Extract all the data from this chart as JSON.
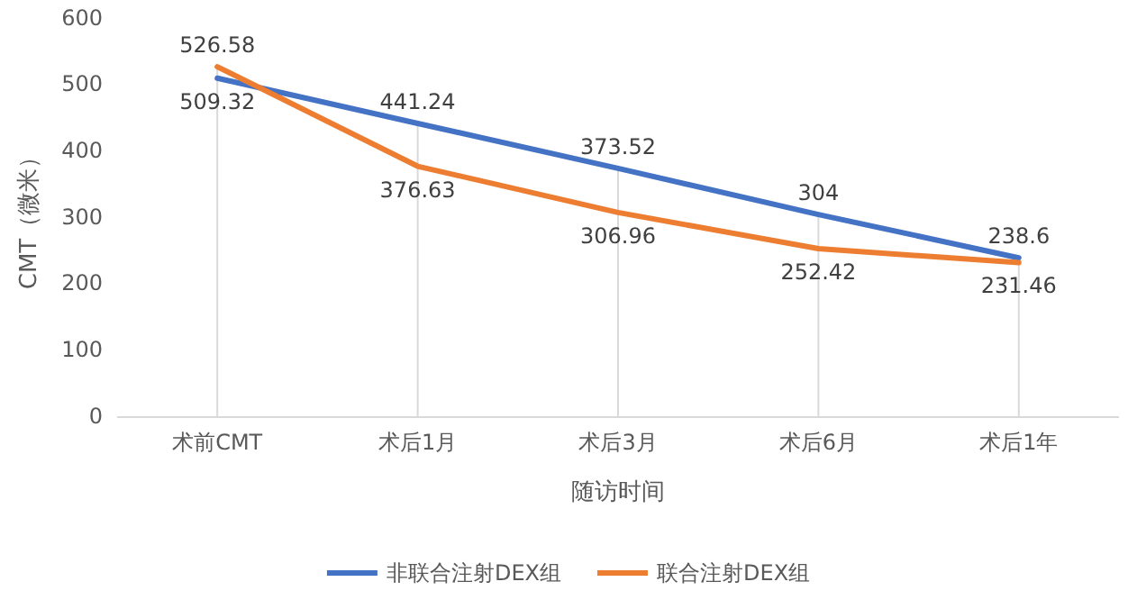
{
  "chart_data": {
    "type": "line",
    "xlabel": "随访时间",
    "ylabel": "CMT（微米）",
    "categories": [
      "术前CMT",
      "术后1月",
      "术后3月",
      "术后6月",
      "术后1年"
    ],
    "series": [
      {
        "name": "非联合注射DEX组",
        "color": "#4472c4",
        "values": [
          509.32,
          441.24,
          373.52,
          304,
          238.6
        ]
      },
      {
        "name": "联合注射DEX组",
        "color": "#ed7d31",
        "values": [
          526.58,
          376.63,
          306.96,
          252.42,
          231.46
        ]
      }
    ],
    "ylim": [
      0,
      600
    ],
    "yticks": [
      0,
      100,
      200,
      300,
      400,
      500,
      600
    ],
    "grid": "x",
    "legend": "bottom",
    "data_labels": true,
    "marker": "none",
    "line_style": "solid"
  }
}
